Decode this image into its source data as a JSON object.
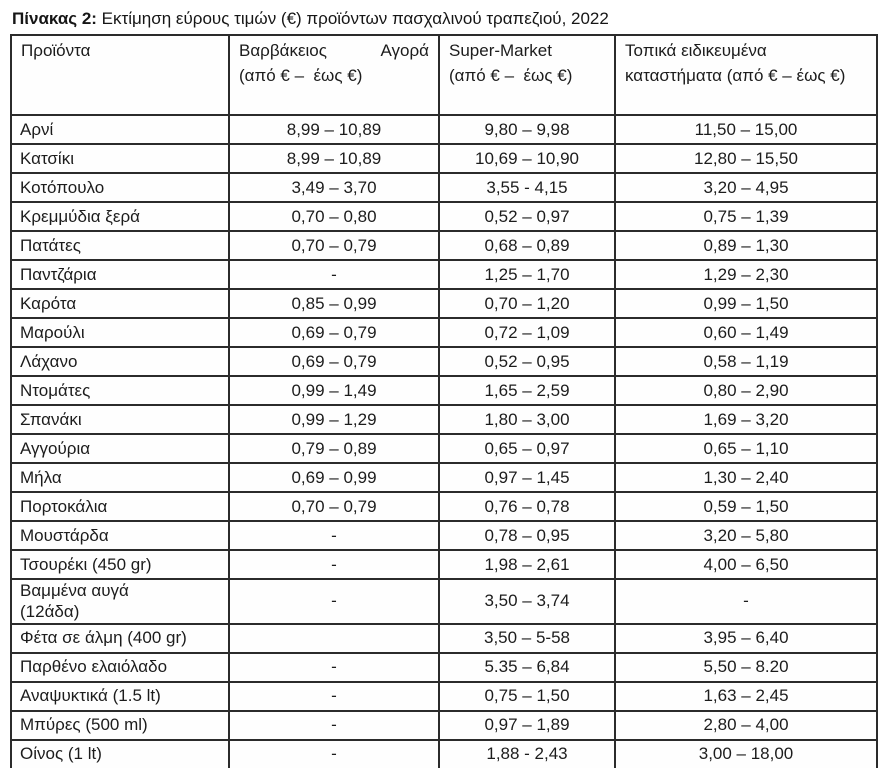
{
  "title": {
    "label": "Πίνακας 2:",
    "text": " Εκτίμηση εύρους τιμών (€) προϊόντων πασχαλινού τραπεζιού, 2022"
  },
  "table": {
    "headers": {
      "products": "Προϊόντα",
      "varvakios_line1": "Βαρβάκειος Αγορά",
      "varvakios_line2": "(από € –  έως €)",
      "supermarket_line1": "Super-Market",
      "supermarket_line2": "(από € –  έως €)",
      "local": "Τοπικά ειδικευμένα καταστήματα (από € – έως €)"
    },
    "rows": [
      {
        "product": "Αρνί",
        "varvakios": "8,99 – 10,89",
        "supermarket": "9,80 – 9,98",
        "local": "11,50 – 15,00"
      },
      {
        "product": "Κατσίκι",
        "varvakios": "8,99 – 10,89",
        "supermarket": "10,69 – 10,90",
        "local": "12,80 – 15,50"
      },
      {
        "product": "Κοτόπουλο",
        "varvakios": "3,49 – 3,70",
        "supermarket": "3,55 - 4,15",
        "local": "3,20 – 4,95"
      },
      {
        "product": "Κρεμμύδια ξερά",
        "varvakios": "0,70 – 0,80",
        "supermarket": "0,52 – 0,97",
        "local": "0,75 – 1,39"
      },
      {
        "product": "Πατάτες",
        "varvakios": "0,70 – 0,79",
        "supermarket": "0,68 – 0,89",
        "local": "0,89 – 1,30"
      },
      {
        "product": "Παντζάρια",
        "varvakios": "-",
        "supermarket": "1,25 – 1,70",
        "local": "1,29 – 2,30"
      },
      {
        "product": "Καρότα",
        "varvakios": "0,85 – 0,99",
        "supermarket": "0,70 – 1,20",
        "local": "0,99 – 1,50"
      },
      {
        "product": "Μαρούλι",
        "varvakios": "0,69 – 0,79",
        "supermarket": "0,72 – 1,09",
        "local": "0,60 – 1,49"
      },
      {
        "product": "Λάχανο",
        "varvakios": "0,69 – 0,79",
        "supermarket": "0,52 – 0,95",
        "local": "0,58 – 1,19"
      },
      {
        "product": "Ντομάτες",
        "varvakios": "0,99 – 1,49",
        "supermarket": "1,65 – 2,59",
        "local": "0,80 – 2,90"
      },
      {
        "product": "Σπανάκι",
        "varvakios": "0,99 – 1,29",
        "supermarket": "1,80 – 3,00",
        "local": "1,69 – 3,20"
      },
      {
        "product": "Αγγούρια",
        "varvakios": "0,79 – 0,89",
        "supermarket": "0,65 – 0,97",
        "local": "0,65 – 1,10"
      },
      {
        "product": "Μήλα",
        "varvakios": "0,69 – 0,99",
        "supermarket": "0,97 – 1,45",
        "local": "1,30 – 2,40"
      },
      {
        "product": "Πορτοκάλια",
        "varvakios": "0,70 – 0,79",
        "supermarket": "0,76 – 0,78",
        "local": "0,59 – 1,50"
      },
      {
        "product": "Μουστάρδα",
        "varvakios": "-",
        "supermarket": "0,78 – 0,95",
        "local": "3,20 – 5,80"
      },
      {
        "product": "Τσουρέκι (450 gr)",
        "varvakios": "-",
        "supermarket": "1,98 – 2,61",
        "local": "4,00 – 6,50"
      },
      {
        "product": "Βαμμένα αυγά\n(12άδα)",
        "varvakios": "-",
        "supermarket": "3,50 – 3,74",
        "local": "-"
      },
      {
        "product": "Φέτα σε άλμη (400 gr)",
        "varvakios": "",
        "supermarket": "3,50 – 5-58",
        "local": "3,95 – 6,40"
      },
      {
        "product": "Παρθένο ελαιόλαδο",
        "varvakios": "-",
        "supermarket": "5.35 – 6,84",
        "local": "5,50 – 8.20"
      },
      {
        "product": "Αναψυκτικά (1.5 lt)",
        "varvakios": "-",
        "supermarket": "0,75 – 1,50",
        "local": "1,63 – 2,45"
      },
      {
        "product": "Μπύρες (500 ml)",
        "varvakios": "-",
        "supermarket": "0,97 – 1,89",
        "local": "2,80 – 4,00"
      },
      {
        "product": "Οίνος (1 lt)",
        "varvakios": "-",
        "supermarket": "1,88 - 2,43",
        "local": "3,00 – 18,00"
      }
    ]
  },
  "colors": {
    "border": "#2b2b2b",
    "text": "#1c1c1c",
    "background": "#ffffff"
  }
}
